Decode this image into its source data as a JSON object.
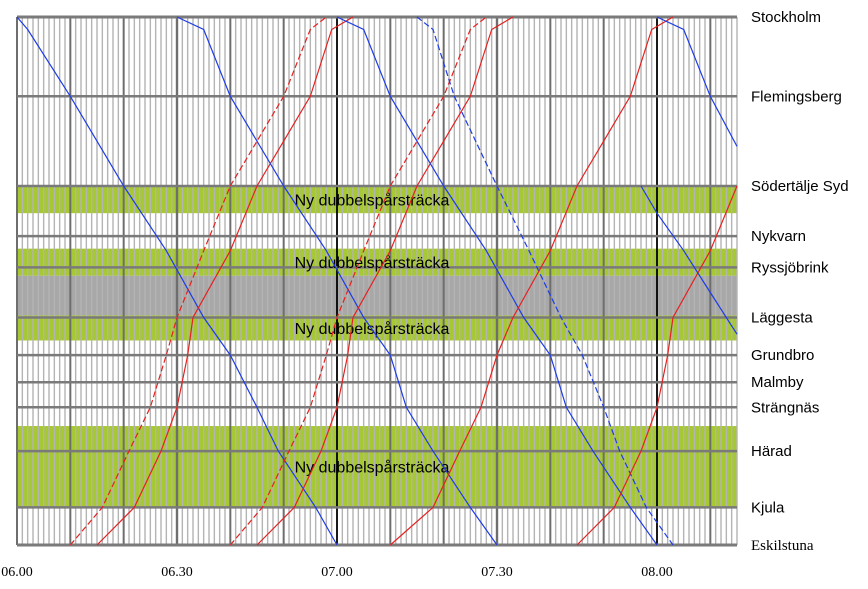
{
  "chart_data": {
    "type": "line",
    "title": "",
    "xlabel": "",
    "ylabel": "",
    "x_range": [
      "06.00",
      "08.15"
    ],
    "x_ticks": [
      "06.00",
      "06.30",
      "07.00",
      "07.30",
      "08.00"
    ],
    "grid": "vertical lines every minute, major lines every 10 minutes, bold every 30 minutes",
    "stations": [
      {
        "name": "Stockholm",
        "km": 0,
        "label_font": "sans"
      },
      {
        "name": "Flemingsberg",
        "km": 19,
        "label_font": "sans"
      },
      {
        "name": "Södertälje Syd",
        "km": 40.5,
        "label_font": "sans"
      },
      {
        "name": "Nykvarn",
        "km": 52.5,
        "label_font": "sans"
      },
      {
        "name": "Ryssjöbrink",
        "km": 60,
        "label_font": "sans"
      },
      {
        "name": "Läggesta",
        "km": 72,
        "label_font": "sans"
      },
      {
        "name": "Grundbro",
        "km": 81,
        "label_font": "sans"
      },
      {
        "name": "Malmby",
        "km": 87.5,
        "label_font": "sans"
      },
      {
        "name": "Strängnäs",
        "km": 93.5,
        "label_font": "sans"
      },
      {
        "name": "Härad",
        "km": 104,
        "label_font": "sans"
      },
      {
        "name": "Kjula",
        "km": 117.5,
        "label_font": "sans"
      },
      {
        "name": "Eskilstuna",
        "km": 126.5,
        "label_font": "serif"
      }
    ],
    "zones": [
      {
        "label": "Ny dubbelspårsträcka",
        "from_km": 40.5,
        "to_km": 47,
        "color": "#a6c832"
      },
      {
        "label": "Ny dubbelspårsträcka",
        "from_km": 55.5,
        "to_km": 62,
        "color": "#a6c832"
      },
      {
        "label": "",
        "from_km": 62,
        "to_km": 71.5,
        "color": "#a8a8a8"
      },
      {
        "label": "Ny dubbelspårsträcka",
        "from_km": 71.5,
        "to_km": 77.5,
        "color": "#a6c832"
      },
      {
        "label": "Ny dubbelspårsträcka",
        "from_km": 98,
        "to_km": 117.5,
        "color": "#a6c832"
      }
    ],
    "series": [
      {
        "color": "#1e3ce6",
        "dashed": false,
        "points": [
          [
            "06.00",
            0
          ],
          [
            "06.02",
            3
          ],
          [
            "06.10",
            19
          ],
          [
            "06.20",
            40.5
          ],
          [
            "06.28",
            56
          ],
          [
            "06.35",
            72
          ],
          [
            "06.40",
            81
          ],
          [
            "06.45",
            93.5
          ],
          [
            "06.49",
            104
          ],
          [
            "06.56",
            117.5
          ],
          [
            "07.00",
            126.5
          ]
        ]
      },
      {
        "color": "#e62020",
        "dashed": true,
        "points": [
          [
            "06.10",
            126.5
          ],
          [
            "06.16",
            117.5
          ],
          [
            "06.21",
            104
          ],
          [
            "06.25",
            93.5
          ],
          [
            "06.28",
            81
          ],
          [
            "06.30",
            72
          ],
          [
            "06.35",
            56
          ],
          [
            "06.40",
            40.5
          ],
          [
            "06.50",
            19
          ],
          [
            "06.55",
            3
          ],
          [
            "06.58",
            0
          ]
        ]
      },
      {
        "color": "#e62020",
        "dashed": false,
        "points": [
          [
            "06.15",
            126.5
          ],
          [
            "06.22",
            117.5
          ],
          [
            "06.27",
            104
          ],
          [
            "06.30",
            93.5
          ],
          [
            "06.32",
            81
          ],
          [
            "06.33",
            72
          ],
          [
            "06.40",
            56
          ],
          [
            "06.45",
            40.5
          ],
          [
            "06.55",
            19
          ],
          [
            "06.59",
            3
          ],
          [
            "07.03",
            0
          ]
        ]
      },
      {
        "color": "#1e3ce6",
        "dashed": false,
        "points": [
          [
            "06.30",
            0
          ],
          [
            "06.35",
            3
          ],
          [
            "06.40",
            19
          ],
          [
            "06.50",
            40.5
          ],
          [
            "06.58",
            56
          ],
          [
            "07.05",
            72
          ],
          [
            "07.10",
            81
          ],
          [
            "07.13",
            93.5
          ],
          [
            "07.18",
            104
          ],
          [
            "07.25",
            117.5
          ],
          [
            "07.30",
            126.5
          ]
        ]
      },
      {
        "color": "#e62020",
        "dashed": true,
        "points": [
          [
            "06.40",
            126.5
          ],
          [
            "06.46",
            117.5
          ],
          [
            "06.51",
            104
          ],
          [
            "06.55",
            93.5
          ],
          [
            "06.58",
            81
          ],
          [
            "07.00",
            72
          ],
          [
            "07.05",
            56
          ],
          [
            "07.10",
            40.5
          ],
          [
            "07.20",
            19
          ],
          [
            "07.25",
            3
          ],
          [
            "07.28",
            0
          ]
        ]
      },
      {
        "color": "#e62020",
        "dashed": false,
        "points": [
          [
            "06.45",
            126.5
          ],
          [
            "06.52",
            117.5
          ],
          [
            "06.57",
            104
          ],
          [
            "07.00",
            93.5
          ],
          [
            "07.02",
            81
          ],
          [
            "07.03",
            72
          ],
          [
            "07.10",
            56
          ],
          [
            "07.15",
            40.5
          ],
          [
            "07.25",
            19
          ],
          [
            "07.29",
            3
          ],
          [
            "07.33",
            0
          ]
        ]
      },
      {
        "color": "#1e3ce6",
        "dashed": false,
        "points": [
          [
            "07.00",
            0
          ],
          [
            "07.05",
            3
          ],
          [
            "07.10",
            19
          ],
          [
            "07.20",
            40.5
          ],
          [
            "07.28",
            56
          ],
          [
            "07.35",
            72
          ],
          [
            "07.40",
            81
          ],
          [
            "07.43",
            93.5
          ],
          [
            "07.48",
            104
          ],
          [
            "07.55",
            117.5
          ],
          [
            "08.00",
            126.5
          ]
        ]
      },
      {
        "color": "#1e3ce6",
        "dashed": true,
        "points": [
          [
            "07.15",
            0
          ],
          [
            "07.18",
            3
          ],
          [
            "07.22",
            19
          ],
          [
            "07.30",
            40.5
          ],
          [
            "07.36",
            56
          ],
          [
            "07.42",
            72
          ],
          [
            "07.46",
            81
          ],
          [
            "07.50",
            93.5
          ],
          [
            "07.53",
            104
          ],
          [
            "07.58",
            117.5
          ],
          [
            "08.03",
            126.5
          ]
        ]
      },
      {
        "color": "#e62020",
        "dashed": false,
        "points": [
          [
            "07.10",
            126.5
          ],
          [
            "07.18",
            117.5
          ],
          [
            "07.23",
            104
          ],
          [
            "07.27",
            93.5
          ],
          [
            "07.30",
            81
          ],
          [
            "07.33",
            72
          ],
          [
            "07.40",
            56
          ],
          [
            "07.45",
            40.5
          ],
          [
            "07.55",
            19
          ],
          [
            "07.59",
            3
          ],
          [
            "08.03",
            0
          ]
        ]
      },
      {
        "color": "#e62020",
        "dashed": false,
        "points": [
          [
            "07.45",
            126.5
          ],
          [
            "07.52",
            117.5
          ],
          [
            "07.57",
            104
          ],
          [
            "08.00",
            93.5
          ],
          [
            "08.02",
            81
          ],
          [
            "08.03",
            72
          ],
          [
            "08.10",
            56
          ],
          [
            "08.15",
            40.5
          ]
        ]
      },
      {
        "color": "#1e3ce6",
        "dashed": false,
        "points": [
          [
            "08.00",
            0
          ],
          [
            "08.05",
            3
          ],
          [
            "08.10",
            19
          ],
          [
            "08.15",
            31
          ]
        ]
      },
      {
        "color": "#1e3ce6",
        "dashed": false,
        "points": [
          [
            "07.57",
            40.5
          ],
          [
            "08.00",
            47
          ],
          [
            "08.05",
            56
          ],
          [
            "08.10",
            66
          ],
          [
            "08.15",
            76
          ]
        ]
      }
    ]
  }
}
